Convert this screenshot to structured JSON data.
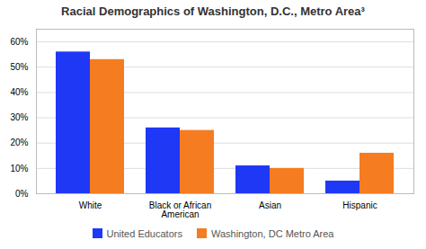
{
  "chart_data": {
    "type": "bar",
    "title": "Racial Demographics of Washington, D.C., Metro Area³",
    "categories": [
      "White",
      "Black or African\nAmerican",
      "Asian",
      "Hispanic"
    ],
    "series": [
      {
        "name": "United Educators",
        "color": "#1f38f5",
        "values": [
          56,
          26,
          11,
          5
        ]
      },
      {
        "name": "Washington, DC Metro Area",
        "color": "#f57c20",
        "values": [
          53,
          25,
          10,
          16
        ]
      }
    ],
    "ylim": [
      0,
      65
    ],
    "yticks": [
      {
        "value": 0,
        "label": "0%"
      },
      {
        "value": 10,
        "label": "10%"
      },
      {
        "value": 20,
        "label": "20%"
      },
      {
        "value": 30,
        "label": "30%"
      },
      {
        "value": 40,
        "label": "40%"
      },
      {
        "value": 50,
        "label": "50%"
      },
      {
        "value": 60,
        "label": "60%"
      }
    ],
    "grid": true,
    "legend": "bottom"
  }
}
